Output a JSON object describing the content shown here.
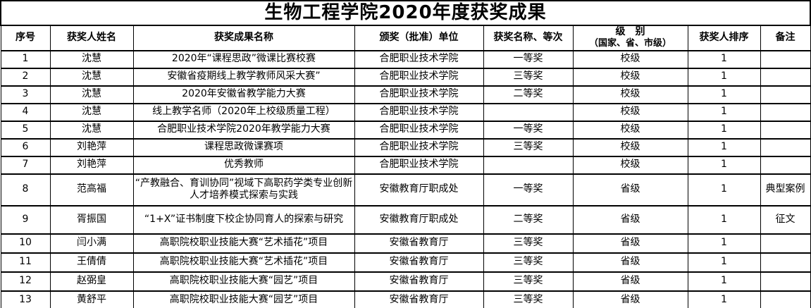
{
  "title": "生物工程学院2020年度获奖成果",
  "colors": {
    "border": "#000000",
    "text": "#000000",
    "background": "#ffffff"
  },
  "table": {
    "headers": {
      "seq": "序号",
      "name": "获奖人姓名",
      "achievement": "获奖成果名称",
      "unit": "颁奖（批准）单位",
      "award": "获奖名称、等次",
      "level_line1": "级　别",
      "level_line2": "（国家、省、市级）",
      "rank": "获奖人排序",
      "note": "备注"
    },
    "rows": [
      {
        "seq": "1",
        "name": "沈慧",
        "achievement": "2020年“课程思政”微课比赛校赛",
        "unit": "合肥职业技术学院",
        "award": "一等奖",
        "level": "校级",
        "rank": "1",
        "note": ""
      },
      {
        "seq": "2",
        "name": "沈慧",
        "achievement": "安徽省疫期线上教学教师风采大赛”",
        "unit": "合肥职业技术学院",
        "award": "三等奖",
        "level": "校级",
        "rank": "1",
        "note": ""
      },
      {
        "seq": "3",
        "name": "沈慧",
        "achievement": "2020年安徽省教学能力大赛",
        "unit": "合肥职业技术学院",
        "award": "二等奖",
        "level": "校级",
        "rank": "1",
        "note": ""
      },
      {
        "seq": "4",
        "name": "沈慧",
        "achievement": "线上教学名师（2020年上校级质量工程）",
        "unit": "合肥职业技术学院",
        "award": "",
        "level": "校级",
        "rank": "1",
        "note": ""
      },
      {
        "seq": "5",
        "name": "沈慧",
        "achievement": "合肥职业技术学院2020年教学能力大赛",
        "unit": "合肥职业技术学院",
        "award": "一等奖",
        "level": "校级",
        "rank": "1",
        "note": ""
      },
      {
        "seq": "6",
        "name": "刘艳萍",
        "achievement": "课程思政微课赛项",
        "unit": "合肥职业技术学院",
        "award": "三等奖",
        "level": "校级",
        "rank": "1",
        "note": ""
      },
      {
        "seq": "7",
        "name": "刘艳萍",
        "achievement": "优秀教师",
        "unit": "合肥职业技术学院",
        "award": "",
        "level": "校级",
        "rank": "1",
        "note": ""
      },
      {
        "seq": "8",
        "name": "范高福",
        "achievement": "“产教融合、育训协同”视域下高职药学类专业创新人才培养模式探索与实践",
        "unit": "安徽教育厅职成处",
        "award": "一等奖",
        "level": "省级",
        "rank": "1",
        "note": "典型案例"
      },
      {
        "seq": "9",
        "name": "胥振国",
        "achievement": "“1+X”证书制度下校企协同育人的探索与研究",
        "unit": "安徽教育厅职成处",
        "award": "二等奖",
        "level": "省级",
        "rank": "1",
        "note": "征文"
      },
      {
        "seq": "10",
        "name": "闫小满",
        "achievement": "高职院校职业技能大赛“艺术插花”项目",
        "unit": "安徽省教育厅",
        "award": "三等奖",
        "level": "省级",
        "rank": "1",
        "note": ""
      },
      {
        "seq": "11",
        "name": "王倩倩",
        "achievement": "高职院校职业技能大赛“艺术插花”项目",
        "unit": "安徽省教育厅",
        "award": "三等奖",
        "level": "省级",
        "rank": "1",
        "note": ""
      },
      {
        "seq": "12",
        "name": "赵弼皇",
        "achievement": "高职院校职业技能大赛“园艺”项目",
        "unit": "安徽省教育厅",
        "award": "三等奖",
        "level": "省级",
        "rank": "1",
        "note": ""
      },
      {
        "seq": "13",
        "name": "黄舒平",
        "achievement": "高职院校职业技能大赛“园艺”项目",
        "unit": "安徽省教育厅",
        "award": "三等奖",
        "level": "省级",
        "rank": "1",
        "note": ""
      }
    ]
  }
}
